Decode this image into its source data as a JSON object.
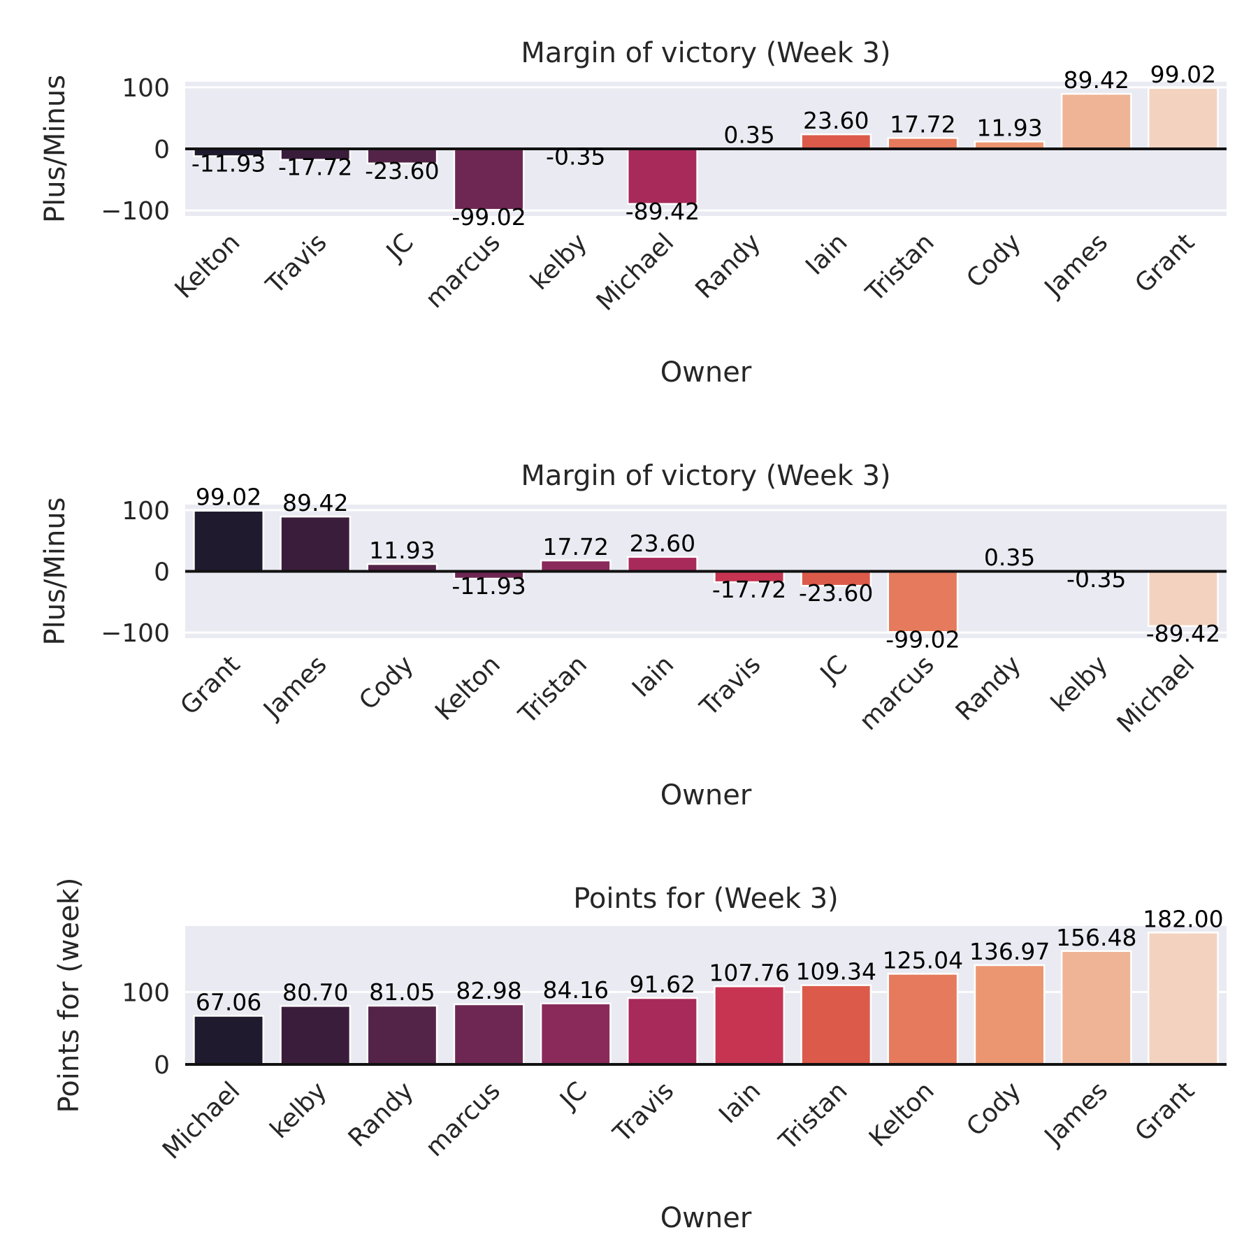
{
  "chart_data": [
    {
      "type": "bar",
      "title": "Margin of victory (Week 3)",
      "xlabel": "Owner",
      "ylabel": "Plus/Minus",
      "categories": [
        "Kelton",
        "Travis",
        "JC",
        "marcus",
        "kelby",
        "Michael",
        "Randy",
        "Iain",
        "Tristan",
        "Cody",
        "James",
        "Grant"
      ],
      "values": [
        -11.93,
        -17.72,
        -23.6,
        -99.02,
        -0.35,
        -89.42,
        0.35,
        23.6,
        17.72,
        11.93,
        89.42,
        99.02
      ],
      "data_labels": [
        "-11.93",
        "-17.72",
        "-23.60",
        "-99.02",
        "-0.35",
        "-89.42",
        "0.35",
        "23.60",
        "17.72",
        "11.93",
        "89.42",
        "99.02"
      ],
      "yticks": [
        -100,
        0,
        100
      ],
      "ytick_labels": [
        "−100",
        "0",
        "100"
      ],
      "ylim": [
        -109,
        109
      ],
      "zero_line": true,
      "grid": true,
      "palette": "rocket",
      "colors": [
        "#1f1a2e",
        "#3a1d3b",
        "#542448",
        "#6e2752",
        "#8a2a5b",
        "#a82a5a",
        "#c63451",
        "#dc5a4a",
        "#e57a5c",
        "#eb9670",
        "#efb496",
        "#f3d3bf"
      ]
    },
    {
      "type": "bar",
      "title": "Margin of victory (Week 3)",
      "xlabel": "Owner",
      "ylabel": "Plus/Minus",
      "categories": [
        "Grant",
        "James",
        "Cody",
        "Kelton",
        "Tristan",
        "Iain",
        "Travis",
        "JC",
        "marcus",
        "Randy",
        "kelby",
        "Michael"
      ],
      "values": [
        99.02,
        89.42,
        11.93,
        -11.93,
        17.72,
        23.6,
        -17.72,
        -23.6,
        -99.02,
        0.35,
        -0.35,
        -89.42
      ],
      "data_labels": [
        "99.02",
        "89.42",
        "11.93",
        "-11.93",
        "17.72",
        "23.60",
        "-17.72",
        "-23.60",
        "-99.02",
        "0.35",
        "-0.35",
        "-89.42"
      ],
      "yticks": [
        -100,
        0,
        100
      ],
      "ytick_labels": [
        "−100",
        "0",
        "100"
      ],
      "ylim": [
        -109,
        109
      ],
      "zero_line": true,
      "grid": true,
      "palette": "rocket",
      "colors": [
        "#1f1a2e",
        "#3a1d3b",
        "#542448",
        "#6e2752",
        "#8a2a5b",
        "#a82a5a",
        "#c63451",
        "#dc5a4a",
        "#e57a5c",
        "#eb9670",
        "#efb496",
        "#f3d3bf"
      ]
    },
    {
      "type": "bar",
      "title": "Points for  (Week 3)",
      "xlabel": "Owner",
      "ylabel": "Points for (week)",
      "categories": [
        "Michael",
        "kelby",
        "Randy",
        "marcus",
        "JC",
        "Travis",
        "Iain",
        "Tristan",
        "Kelton",
        "Cody",
        "James",
        "Grant"
      ],
      "values": [
        67.06,
        80.7,
        81.05,
        82.98,
        84.16,
        91.62,
        107.76,
        109.34,
        125.04,
        136.97,
        156.48,
        182.0
      ],
      "data_labels": [
        "67.06",
        "80.70",
        "81.05",
        "82.98",
        "84.16",
        "91.62",
        "107.76",
        "109.34",
        "125.04",
        "136.97",
        "156.48",
        "182.00"
      ],
      "yticks": [
        0,
        100
      ],
      "ytick_labels": [
        "0",
        "100"
      ],
      "ylim": [
        0,
        191
      ],
      "zero_line": true,
      "grid": true,
      "palette": "rocket",
      "colors": [
        "#1f1a2e",
        "#3a1d3b",
        "#542448",
        "#6e2752",
        "#8a2a5b",
        "#a82a5a",
        "#c63451",
        "#dc5a4a",
        "#e57a5c",
        "#eb9670",
        "#efb496",
        "#f3d3bf"
      ]
    }
  ]
}
